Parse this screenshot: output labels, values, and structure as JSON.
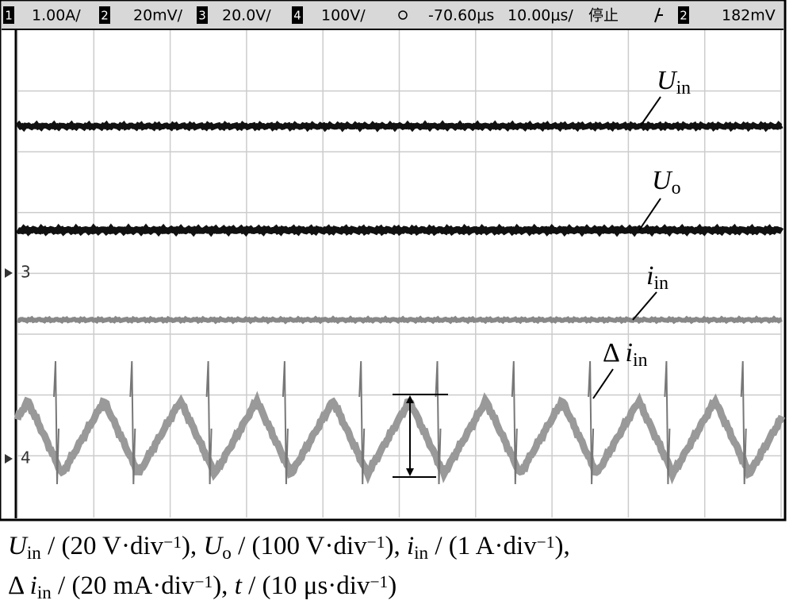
{
  "status_bar": [
    "1",
    "1.00A/",
    "2",
    "20mV/",
    "3",
    "20.0V/",
    "4",
    "100V/",
    "-70.60μs",
    "10.00μs/",
    "停止",
    "2",
    "182mV"
  ],
  "markers": [
    "3",
    "4"
  ],
  "trace_labels": [
    [
      {
        "t": "U",
        "s": "i"
      },
      {
        "t": "in",
        "s": "sub"
      }
    ],
    [
      {
        "t": "U",
        "s": "i"
      },
      {
        "t": "o",
        "s": "sub"
      }
    ],
    [
      {
        "t": "i",
        "s": "i"
      },
      {
        "t": "in",
        "s": "sub"
      }
    ],
    [
      {
        "t": "Δ ",
        "s": ""
      },
      {
        "t": "i",
        "s": "i"
      },
      {
        "t": "in",
        "s": "sub"
      }
    ]
  ],
  "caption": [
    [
      {
        "t": "U",
        "s": "i"
      },
      {
        "t": "in",
        "s": "sub"
      },
      {
        "t": " / (20 V·div",
        "s": ""
      },
      {
        "t": "−1",
        "s": "sup"
      },
      {
        "t": "), ",
        "s": ""
      },
      {
        "t": "U",
        "s": "i"
      },
      {
        "t": "o",
        "s": "sub"
      },
      {
        "t": " / (100 V·div",
        "s": ""
      },
      {
        "t": "−1",
        "s": "sup"
      },
      {
        "t": "), ",
        "s": ""
      },
      {
        "t": "i",
        "s": "i"
      },
      {
        "t": "in",
        "s": "sub"
      },
      {
        "t": " / (1 A·div",
        "s": ""
      },
      {
        "t": "−1",
        "s": "sup"
      },
      {
        "t": "),",
        "s": ""
      }
    ],
    [
      {
        "t": "Δ ",
        "s": ""
      },
      {
        "t": "i",
        "s": "i"
      },
      {
        "t": "in",
        "s": "sub"
      },
      {
        "t": " / (20 mA·div",
        "s": ""
      },
      {
        "t": "−1",
        "s": "sup"
      },
      {
        "t": "), ",
        "s": ""
      },
      {
        "t": "t",
        "s": "i"
      },
      {
        "t": " / (10 μs·div",
        "s": ""
      },
      {
        "t": "−1",
        "s": "sup"
      },
      {
        "t": ")",
        "s": ""
      }
    ]
  ]
}
